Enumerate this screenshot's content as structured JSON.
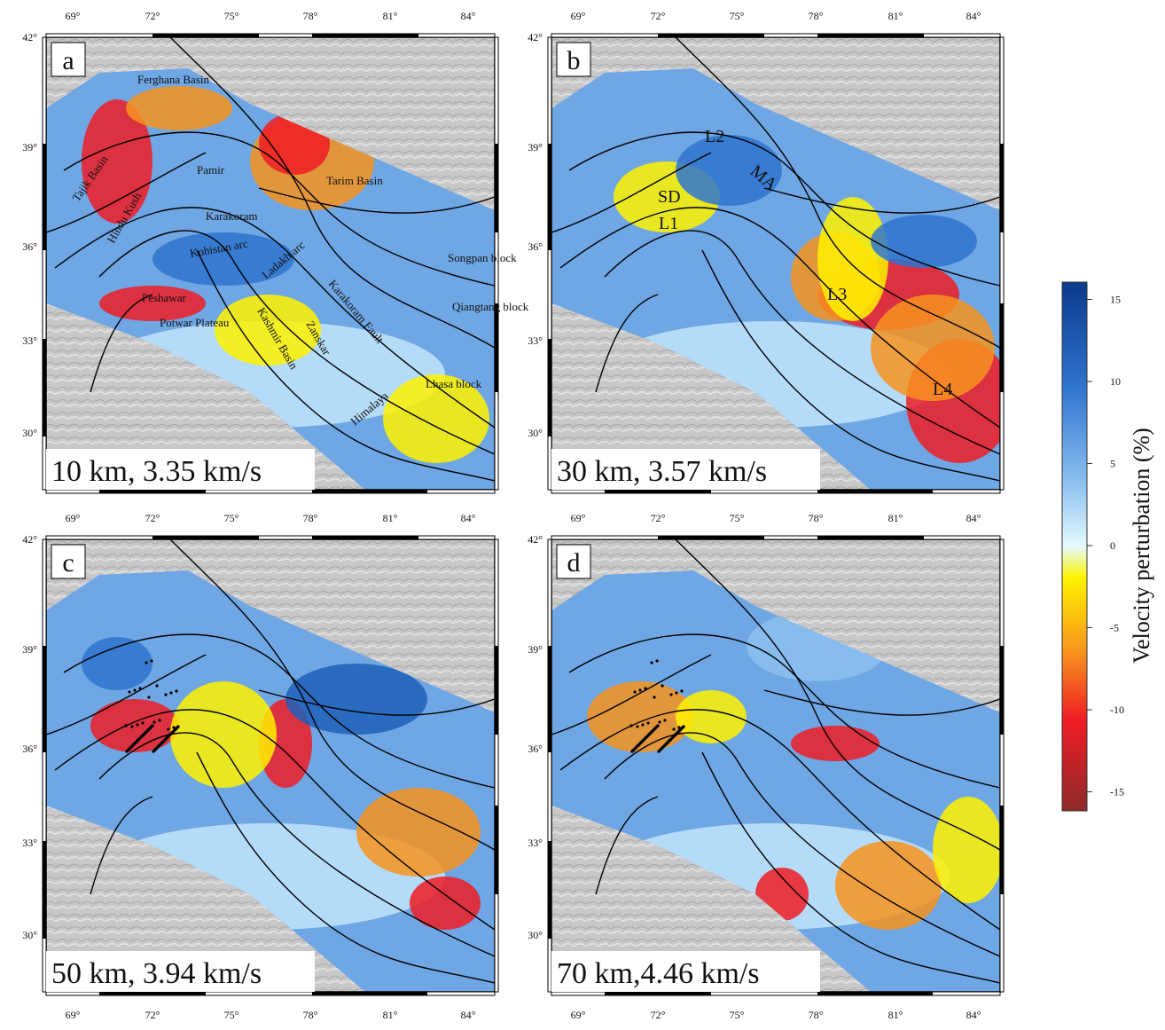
{
  "lon_ticks": [
    "69°",
    "72°",
    "75°",
    "78°",
    "81°",
    "84°"
  ],
  "lat_ticks": [
    "42°",
    "39°",
    "36°",
    "33°",
    "30°"
  ],
  "panels": [
    {
      "letter": "a",
      "caption": "10 km, 3.35 km/s",
      "places": [
        "Ferghana Basin",
        "Tarim Basin",
        "Tajik Basin",
        "Pamir",
        "Hindu Kush",
        "Karakoram",
        "Kohistan arc",
        "Ladakh arc",
        "Karakoram Fault",
        "Songpan block",
        "Qiangtang block",
        "Peshawar",
        "Potwar Plateau",
        "Kashmir Basin",
        "Zanskar",
        "Lhasa block",
        "Himalaya"
      ]
    },
    {
      "letter": "b",
      "caption": "30 km, 3.57 km/s",
      "places": [
        "L2",
        "MA",
        "SD",
        "L1",
        "L3",
        "L4"
      ]
    },
    {
      "letter": "c",
      "caption": "50 km, 3.94 km/s",
      "places": []
    },
    {
      "letter": "d",
      "caption": "70 km,4.46 km/s",
      "places": []
    }
  ],
  "colorbar": {
    "title": "Velocity perturbation (%)",
    "ticks": [
      15,
      10,
      5,
      0,
      -5,
      -10,
      -15
    ]
  }
}
